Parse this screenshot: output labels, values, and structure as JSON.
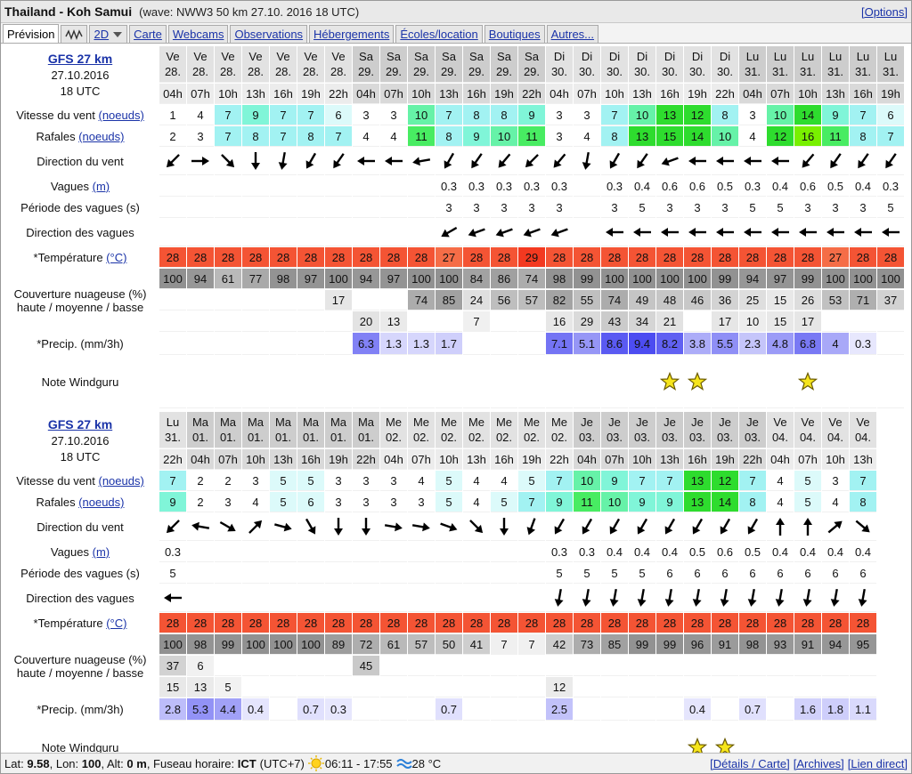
{
  "header": {
    "title": "Thailand - Koh Samui",
    "wave_info": "(wave: NWW3 50 km 27.10. 2016 18 UTC)",
    "options": "[Options]"
  },
  "tabs": [
    "Prévision",
    "2D",
    "Carte",
    "Webcams",
    "Observations",
    "Hébergements",
    "Écoles/location",
    "Boutiques",
    "Autres..."
  ],
  "labels": {
    "wind": "Vitesse du vent",
    "wind_unit": "(noeuds)",
    "gusts": "Rafales",
    "wind_dir": "Direction du vent",
    "waves": "Vagues",
    "waves_unit": "(m)",
    "wave_period": "Période des vagues (s)",
    "wave_dir": "Direction des vagues",
    "temperature": "*Température",
    "temperature_unit": "(°C)",
    "cloud": "Couverture nuageuse (%)",
    "cloud_levels": "haute / moyenne / basse",
    "precip": "*Precip. (mm/3h)",
    "rating": "Note Windguru"
  },
  "forecasts": [
    {
      "model": "GFS 27 km",
      "run_date": "27.10.2016",
      "run_time": "18 UTC",
      "days": [
        "Ve",
        "Ve",
        "Ve",
        "Ve",
        "Ve",
        "Ve",
        "Ve",
        "Sa",
        "Sa",
        "Sa",
        "Sa",
        "Sa",
        "Sa",
        "Sa",
        "Di",
        "Di",
        "Di",
        "Di",
        "Di",
        "Di",
        "Di",
        "Lu",
        "Lu",
        "Lu",
        "Lu",
        "Lu",
        "Lu"
      ],
      "dates": [
        "28.",
        "28.",
        "28.",
        "28.",
        "28.",
        "28.",
        "28.",
        "29.",
        "29.",
        "29.",
        "29.",
        "29.",
        "29.",
        "29.",
        "30.",
        "30.",
        "30.",
        "30.",
        "30.",
        "30.",
        "30.",
        "31.",
        "31.",
        "31.",
        "31.",
        "31.",
        "31."
      ],
      "hours": [
        "04h",
        "07h",
        "10h",
        "13h",
        "16h",
        "19h",
        "22h",
        "04h",
        "07h",
        "10h",
        "13h",
        "16h",
        "19h",
        "22h",
        "04h",
        "07h",
        "10h",
        "13h",
        "16h",
        "19h",
        "22h",
        "04h",
        "07h",
        "10h",
        "13h",
        "16h",
        "19h"
      ],
      "wind": [
        1,
        4,
        7,
        9,
        7,
        7,
        6,
        3,
        3,
        10,
        7,
        8,
        8,
        9,
        3,
        3,
        7,
        10,
        13,
        12,
        8,
        3,
        10,
        14,
        9,
        7,
        6
      ],
      "gusts": [
        2,
        3,
        7,
        8,
        7,
        8,
        7,
        4,
        4,
        11,
        8,
        9,
        10,
        11,
        3,
        4,
        8,
        13,
        15,
        14,
        10,
        4,
        12,
        16,
        11,
        8,
        7
      ],
      "wind_dir": [
        135,
        0,
        45,
        90,
        100,
        120,
        125,
        180,
        180,
        170,
        120,
        125,
        130,
        135,
        130,
        100,
        120,
        125,
        160,
        180,
        180,
        180,
        180,
        130,
        125,
        125,
        125
      ],
      "waves": [
        null,
        null,
        null,
        null,
        null,
        null,
        null,
        null,
        null,
        null,
        0.3,
        0.3,
        0.3,
        0.3,
        0.3,
        null,
        0.3,
        0.4,
        0.6,
        0.6,
        0.5,
        0.3,
        0.4,
        0.6,
        0.5,
        0.4,
        0.3
      ],
      "wave_period": [
        null,
        null,
        null,
        null,
        null,
        null,
        null,
        null,
        null,
        null,
        3,
        3,
        3,
        3,
        3,
        null,
        3,
        5,
        3,
        3,
        3,
        5,
        5,
        3,
        3,
        3,
        5
      ],
      "wave_dir": [
        null,
        null,
        null,
        null,
        null,
        null,
        null,
        null,
        null,
        null,
        150,
        160,
        160,
        160,
        160,
        null,
        180,
        180,
        180,
        180,
        180,
        180,
        180,
        180,
        180,
        180,
        180
      ],
      "temperature": [
        28,
        28,
        28,
        28,
        28,
        28,
        28,
        28,
        28,
        28,
        27,
        28,
        28,
        29,
        28,
        28,
        28,
        28,
        28,
        28,
        28,
        28,
        28,
        28,
        27,
        28,
        28
      ],
      "cloud_total": [
        100,
        94,
        61,
        77,
        98,
        97,
        100,
        94,
        97,
        100,
        100,
        84,
        86,
        74,
        98,
        99,
        100,
        100,
        100,
        100,
        99,
        94,
        97,
        99,
        100,
        100,
        100
      ],
      "cloud_high": [
        null,
        null,
        null,
        null,
        null,
        null,
        17,
        null,
        null,
        74,
        85,
        24,
        56,
        57,
        82,
        55,
        74,
        49,
        48,
        46,
        36,
        25,
        15,
        26,
        53,
        71,
        37
      ],
      "cloud_mid": [
        null,
        null,
        null,
        null,
        null,
        null,
        null,
        20,
        13,
        null,
        null,
        7,
        null,
        null,
        16,
        29,
        43,
        34,
        21,
        null,
        17,
        10,
        15,
        17,
        null,
        null,
        null
      ],
      "precip": [
        null,
        null,
        null,
        null,
        null,
        null,
        null,
        6.3,
        1.3,
        1.3,
        1.7,
        null,
        null,
        null,
        7.1,
        5.1,
        8.6,
        9.4,
        8.2,
        3.8,
        5.5,
        2.3,
        4.8,
        6.8,
        4,
        0.3,
        null
      ],
      "rating": [
        null,
        null,
        null,
        null,
        null,
        null,
        null,
        null,
        null,
        null,
        null,
        null,
        null,
        null,
        null,
        null,
        null,
        null,
        1,
        1,
        null,
        null,
        null,
        1,
        null,
        null,
        null
      ]
    },
    {
      "model": "GFS 27 km",
      "run_date": "27.10.2016",
      "run_time": "18 UTC",
      "days": [
        "Lu",
        "Ma",
        "Ma",
        "Ma",
        "Ma",
        "Ma",
        "Ma",
        "Ma",
        "Me",
        "Me",
        "Me",
        "Me",
        "Me",
        "Me",
        "Me",
        "Je",
        "Je",
        "Je",
        "Je",
        "Je",
        "Je",
        "Je",
        "Ve",
        "Ve",
        "Ve",
        "Ve"
      ],
      "dates": [
        "31.",
        "01.",
        "01.",
        "01.",
        "01.",
        "01.",
        "01.",
        "01.",
        "02.",
        "02.",
        "02.",
        "02.",
        "02.",
        "02.",
        "02.",
        "03.",
        "03.",
        "03.",
        "03.",
        "03.",
        "03.",
        "03.",
        "04.",
        "04.",
        "04.",
        "04."
      ],
      "hours": [
        "22h",
        "04h",
        "07h",
        "10h",
        "13h",
        "16h",
        "19h",
        "22h",
        "04h",
        "07h",
        "10h",
        "13h",
        "16h",
        "19h",
        "22h",
        "04h",
        "07h",
        "10h",
        "13h",
        "16h",
        "19h",
        "22h",
        "04h",
        "07h",
        "10h",
        "13h"
      ],
      "wind": [
        7,
        2,
        2,
        3,
        5,
        5,
        3,
        3,
        3,
        4,
        5,
        4,
        4,
        5,
        7,
        10,
        9,
        7,
        7,
        13,
        12,
        7,
        4,
        5,
        3,
        7
      ],
      "gusts": [
        9,
        2,
        3,
        4,
        5,
        6,
        3,
        3,
        3,
        3,
        5,
        4,
        5,
        7,
        9,
        11,
        10,
        9,
        9,
        13,
        14,
        8,
        4,
        5,
        4,
        8
      ],
      "wind_dir": [
        135,
        190,
        30,
        -45,
        15,
        60,
        90,
        90,
        10,
        10,
        20,
        45,
        90,
        110,
        120,
        120,
        120,
        120,
        120,
        120,
        120,
        120,
        -90,
        -90,
        -40,
        40
      ],
      "waves": [
        0.3,
        null,
        null,
        null,
        null,
        null,
        null,
        null,
        null,
        null,
        null,
        null,
        null,
        null,
        0.3,
        0.3,
        0.4,
        0.4,
        0.4,
        0.5,
        0.6,
        0.5,
        0.4,
        0.4,
        0.4,
        0.4
      ],
      "wave_period": [
        5,
        null,
        null,
        null,
        null,
        null,
        null,
        null,
        null,
        null,
        null,
        null,
        null,
        null,
        5,
        5,
        5,
        5,
        6,
        6,
        6,
        6,
        6,
        6,
        6,
        6
      ],
      "wave_dir": [
        180,
        null,
        null,
        null,
        null,
        null,
        null,
        null,
        null,
        null,
        null,
        null,
        null,
        null,
        100,
        100,
        100,
        100,
        100,
        100,
        100,
        100,
        100,
        100,
        100,
        100
      ],
      "temperature": [
        28,
        28,
        28,
        28,
        28,
        28,
        28,
        28,
        28,
        28,
        28,
        28,
        28,
        28,
        28,
        28,
        28,
        28,
        28,
        28,
        28,
        28,
        28,
        28,
        28,
        28
      ],
      "cloud_total": [
        100,
        98,
        99,
        100,
        100,
        100,
        89,
        72,
        61,
        57,
        50,
        41,
        7,
        7,
        42,
        73,
        85,
        99,
        99,
        96,
        91,
        98,
        93,
        91,
        94,
        95
      ],
      "cloud_high": [
        37,
        6,
        null,
        null,
        null,
        null,
        null,
        45,
        null,
        null,
        null,
        null,
        null,
        null,
        null,
        null,
        null,
        null,
        null,
        null,
        null,
        null,
        null,
        null,
        null,
        null
      ],
      "cloud_mid": [
        15,
        13,
        5,
        null,
        null,
        null,
        null,
        null,
        null,
        null,
        null,
        null,
        null,
        null,
        12,
        null,
        null,
        null,
        null,
        null,
        null,
        null,
        null,
        null,
        null,
        null
      ],
      "precip": [
        2.8,
        5.3,
        4.4,
        0.4,
        null,
        0.7,
        0.3,
        null,
        null,
        null,
        0.7,
        null,
        null,
        null,
        2.5,
        null,
        null,
        null,
        null,
        0.4,
        null,
        0.7,
        null,
        1.6,
        1.8,
        1.1
      ],
      "rating": [
        null,
        null,
        null,
        null,
        null,
        null,
        null,
        null,
        null,
        null,
        null,
        null,
        null,
        null,
        null,
        null,
        null,
        null,
        null,
        1,
        1,
        null,
        null,
        null,
        null,
        null
      ]
    }
  ],
  "footer": {
    "location": [
      {
        "label": "Lat:",
        "value": "9.58"
      },
      {
        "label": ", Lon:",
        "value": "100"
      },
      {
        "label": ", Alt:",
        "value": "0 m"
      },
      {
        "label": ", Fuseau horaire:",
        "value": "ICT"
      }
    ],
    "utc": "(UTC+7)",
    "sun": "06:11 - 17:55",
    "sea_temp": "28 °C",
    "links": [
      "[Détails / Carte]",
      "[Archives]",
      "[Lien direct]"
    ]
  }
}
